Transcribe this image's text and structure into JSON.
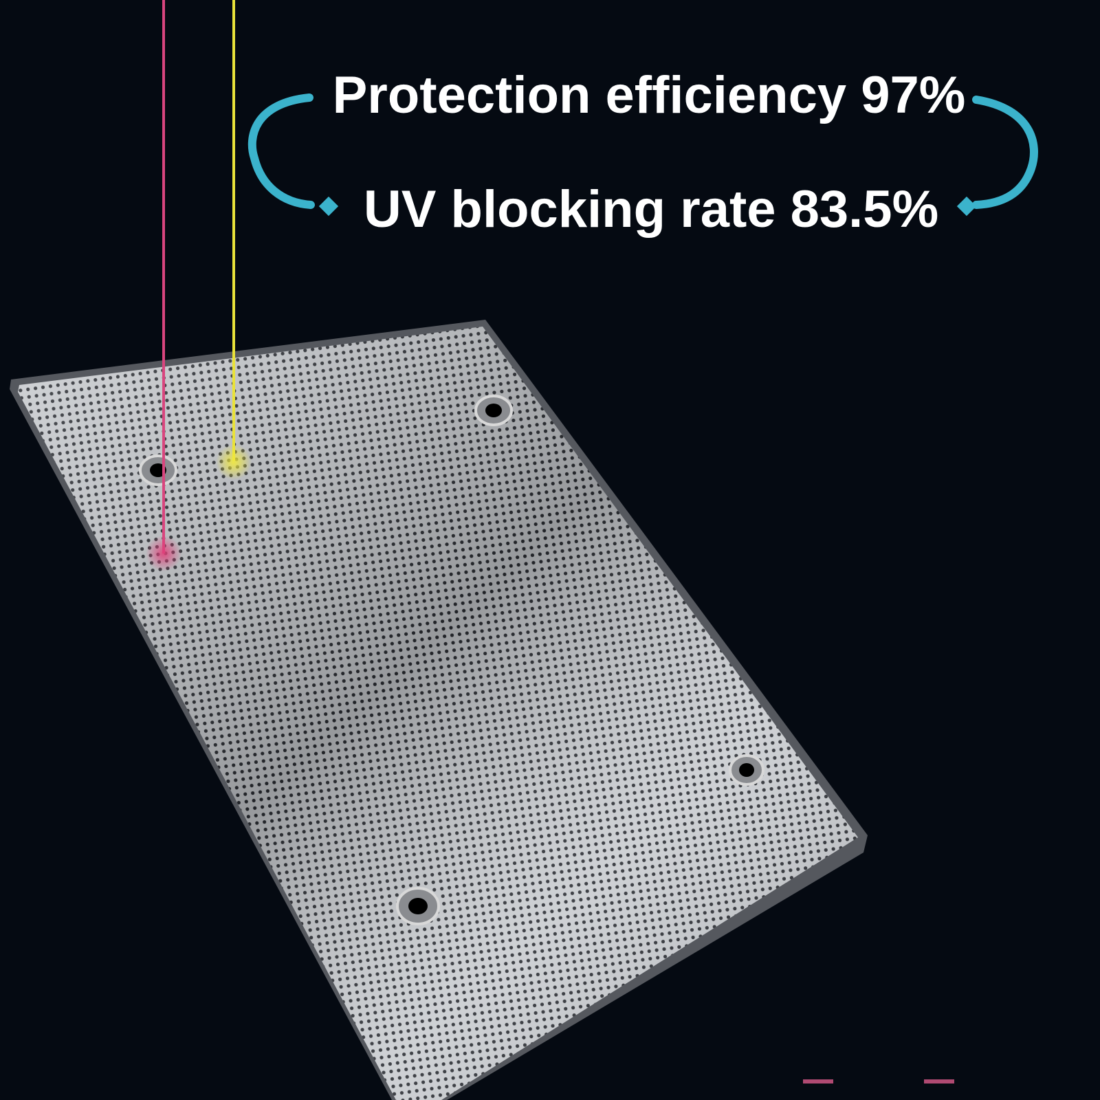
{
  "headline": {
    "line1": "Protection efficiency 97%",
    "line2": "UV blocking rate 83.5%"
  }
}
